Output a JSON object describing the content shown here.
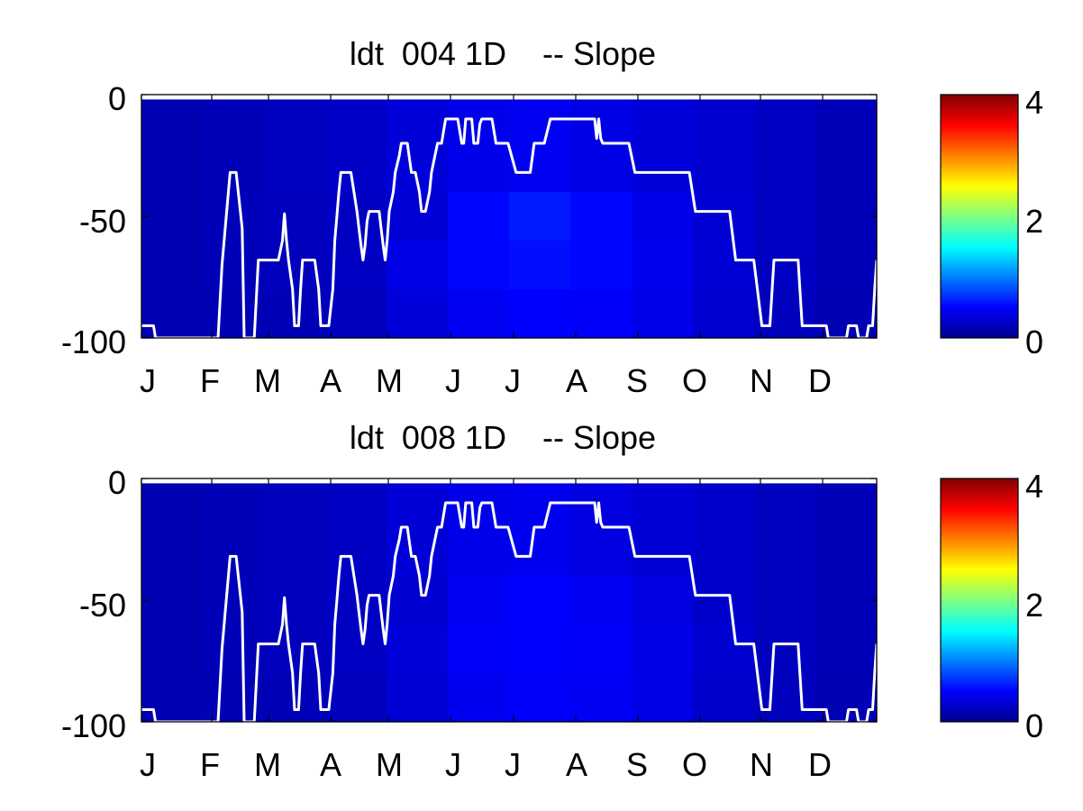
{
  "panels": [
    {
      "title": "ldt  004 1D    -- Slope",
      "yticks": [
        "0",
        "-50",
        "-100"
      ],
      "colorbar_ticks": [
        "4",
        "2",
        "0"
      ]
    },
    {
      "title": "ldt  008 1D    -- Slope",
      "yticks": [
        "0",
        "-50",
        "-100"
      ],
      "colorbar_ticks": [
        "4",
        "2",
        "0"
      ]
    }
  ],
  "month_labels": [
    "J",
    "F",
    "M",
    "A",
    "M",
    "J",
    "J",
    "A",
    "S",
    "O",
    "N",
    "D"
  ],
  "colors": {
    "background": "#ffffff",
    "line": "#ffffff",
    "colormap": "jet"
  },
  "chart_data": [
    {
      "type": "heatmap",
      "title": "ldt  004 1D    -- Slope",
      "xlabel": "",
      "ylabel": "",
      "xlim": [
        0,
        365
      ],
      "ylim": [
        -100,
        0
      ],
      "x_tick_labels": [
        "J",
        "F",
        "M",
        "A",
        "M",
        "J",
        "J",
        "A",
        "S",
        "O",
        "N",
        "D"
      ],
      "y_ticks": [
        0,
        -50,
        -100
      ],
      "colorbar": {
        "range": [
          0,
          4
        ],
        "ticks": [
          0,
          2,
          4
        ],
        "colormap": "jet",
        "position": "right"
      },
      "depth_bands": [
        {
          "range": [
            -2,
            -40
          ],
          "values": [
            0.2,
            0.22,
            0.25,
            0.28,
            0.35,
            0.42,
            0.45,
            0.4,
            0.36,
            0.32,
            0.26,
            0.22
          ]
        },
        {
          "range": [
            -40,
            -60
          ],
          "values": [
            0.2,
            0.22,
            0.24,
            0.26,
            0.34,
            0.52,
            0.6,
            0.52,
            0.42,
            0.33,
            0.26,
            0.22
          ]
        },
        {
          "range": [
            -60,
            -80
          ],
          "values": [
            0.2,
            0.22,
            0.24,
            0.26,
            0.4,
            0.52,
            0.55,
            0.52,
            0.44,
            0.34,
            0.26,
            0.22
          ]
        },
        {
          "range": [
            -80,
            -100
          ],
          "values": [
            0.2,
            0.21,
            0.22,
            0.24,
            0.36,
            0.45,
            0.5,
            0.48,
            0.42,
            0.32,
            0.24,
            0.21
          ]
        }
      ],
      "line": {
        "name": "",
        "color": "#ffffff",
        "points": [
          [
            0,
            -95
          ],
          [
            6,
            -95
          ],
          [
            7,
            -100
          ],
          [
            38,
            -100
          ],
          [
            40,
            -70
          ],
          [
            44,
            -32
          ],
          [
            47,
            -32
          ],
          [
            50,
            -55
          ],
          [
            51,
            -100
          ],
          [
            56,
            -100
          ],
          [
            58,
            -68
          ],
          [
            68,
            -68
          ],
          [
            70,
            -60
          ],
          [
            71,
            -49
          ],
          [
            72,
            -60
          ],
          [
            73,
            -68
          ],
          [
            75,
            -80
          ],
          [
            76,
            -95
          ],
          [
            78,
            -95
          ],
          [
            79,
            -80
          ],
          [
            80,
            -68
          ],
          [
            86,
            -68
          ],
          [
            88,
            -80
          ],
          [
            89,
            -95
          ],
          [
            93,
            -95
          ],
          [
            95,
            -80
          ],
          [
            96,
            -60
          ],
          [
            97,
            -50
          ],
          [
            98,
            -40
          ],
          [
            99,
            -32
          ],
          [
            104,
            -32
          ],
          [
            107,
            -48
          ],
          [
            108,
            -55
          ],
          [
            109,
            -62
          ],
          [
            110,
            -68
          ],
          [
            111,
            -62
          ],
          [
            112,
            -52
          ],
          [
            113,
            -48
          ],
          [
            118,
            -48
          ],
          [
            119,
            -55
          ],
          [
            120,
            -62
          ],
          [
            121,
            -68
          ],
          [
            122,
            -60
          ],
          [
            123,
            -48
          ],
          [
            125,
            -40
          ],
          [
            126,
            -32
          ],
          [
            128,
            -25
          ],
          [
            129,
            -20
          ],
          [
            132,
            -20
          ],
          [
            134,
            -32
          ],
          [
            136,
            -32
          ],
          [
            138,
            -40
          ],
          [
            139,
            -48
          ],
          [
            141,
            -48
          ],
          [
            143,
            -40
          ],
          [
            144,
            -32
          ],
          [
            147,
            -20
          ],
          [
            149,
            -20
          ],
          [
            151,
            -10
          ],
          [
            157,
            -10
          ],
          [
            159,
            -20
          ],
          [
            160,
            -20
          ],
          [
            161,
            -10
          ],
          [
            164,
            -10
          ],
          [
            165,
            -20
          ],
          [
            167,
            -20
          ],
          [
            168,
            -12
          ],
          [
            169,
            -10
          ],
          [
            174,
            -10
          ],
          [
            176,
            -20
          ],
          [
            182,
            -20
          ],
          [
            186,
            -32
          ],
          [
            193,
            -32
          ],
          [
            195,
            -20
          ],
          [
            200,
            -20
          ],
          [
            203,
            -10
          ],
          [
            225,
            -10
          ],
          [
            226,
            -18
          ],
          [
            227,
            -10
          ],
          [
            228,
            -18
          ],
          [
            229,
            -20
          ],
          [
            242,
            -20
          ],
          [
            245,
            -32
          ],
          [
            272,
            -32
          ],
          [
            275,
            -48
          ],
          [
            292,
            -48
          ],
          [
            295,
            -68
          ],
          [
            304,
            -68
          ],
          [
            308,
            -95
          ],
          [
            312,
            -95
          ],
          [
            314,
            -68
          ],
          [
            326,
            -68
          ],
          [
            328,
            -95
          ],
          [
            340,
            -95
          ],
          [
            341,
            -100
          ],
          [
            350,
            -100
          ],
          [
            351,
            -95
          ],
          [
            355,
            -95
          ],
          [
            356,
            -100
          ],
          [
            360,
            -100
          ],
          [
            361,
            -95
          ],
          [
            363,
            -95
          ],
          [
            364,
            -80
          ],
          [
            365,
            -68
          ]
        ]
      }
    },
    {
      "type": "heatmap",
      "title": "ldt  008 1D    -- Slope",
      "xlabel": "",
      "ylabel": "",
      "xlim": [
        0,
        365
      ],
      "ylim": [
        -100,
        0
      ],
      "x_tick_labels": [
        "J",
        "F",
        "M",
        "A",
        "M",
        "J",
        "J",
        "A",
        "S",
        "O",
        "N",
        "D"
      ],
      "y_ticks": [
        0,
        -50,
        -100
      ],
      "colorbar": {
        "range": [
          0,
          4
        ],
        "ticks": [
          0,
          2,
          4
        ],
        "colormap": "jet",
        "position": "right"
      },
      "depth_bands": [
        {
          "range": [
            -2,
            -40
          ],
          "values": [
            0.2,
            0.22,
            0.24,
            0.26,
            0.34,
            0.42,
            0.44,
            0.38,
            0.34,
            0.3,
            0.25,
            0.22
          ]
        },
        {
          "range": [
            -40,
            -60
          ],
          "values": [
            0.2,
            0.22,
            0.24,
            0.26,
            0.32,
            0.46,
            0.5,
            0.46,
            0.38,
            0.3,
            0.25,
            0.22
          ]
        },
        {
          "range": [
            -60,
            -80
          ],
          "values": [
            0.2,
            0.22,
            0.24,
            0.26,
            0.36,
            0.48,
            0.5,
            0.48,
            0.4,
            0.32,
            0.25,
            0.22
          ]
        },
        {
          "range": [
            -80,
            -100
          ],
          "values": [
            0.2,
            0.21,
            0.22,
            0.24,
            0.34,
            0.44,
            0.48,
            0.46,
            0.4,
            0.3,
            0.24,
            0.21
          ]
        }
      ],
      "line": {
        "name": "",
        "color": "#ffffff",
        "points": [
          [
            0,
            -95
          ],
          [
            6,
            -95
          ],
          [
            7,
            -100
          ],
          [
            38,
            -100
          ],
          [
            40,
            -70
          ],
          [
            44,
            -32
          ],
          [
            47,
            -32
          ],
          [
            50,
            -55
          ],
          [
            51,
            -100
          ],
          [
            56,
            -100
          ],
          [
            58,
            -68
          ],
          [
            68,
            -68
          ],
          [
            70,
            -60
          ],
          [
            71,
            -49
          ],
          [
            72,
            -60
          ],
          [
            73,
            -68
          ],
          [
            75,
            -80
          ],
          [
            76,
            -95
          ],
          [
            78,
            -95
          ],
          [
            79,
            -80
          ],
          [
            80,
            -68
          ],
          [
            86,
            -68
          ],
          [
            88,
            -80
          ],
          [
            89,
            -95
          ],
          [
            93,
            -95
          ],
          [
            95,
            -80
          ],
          [
            96,
            -60
          ],
          [
            97,
            -50
          ],
          [
            98,
            -40
          ],
          [
            99,
            -32
          ],
          [
            104,
            -32
          ],
          [
            107,
            -48
          ],
          [
            108,
            -55
          ],
          [
            109,
            -62
          ],
          [
            110,
            -68
          ],
          [
            111,
            -62
          ],
          [
            112,
            -52
          ],
          [
            113,
            -48
          ],
          [
            118,
            -48
          ],
          [
            119,
            -55
          ],
          [
            120,
            -62
          ],
          [
            121,
            -68
          ],
          [
            122,
            -60
          ],
          [
            123,
            -48
          ],
          [
            125,
            -40
          ],
          [
            126,
            -32
          ],
          [
            128,
            -25
          ],
          [
            129,
            -20
          ],
          [
            132,
            -20
          ],
          [
            134,
            -32
          ],
          [
            136,
            -32
          ],
          [
            138,
            -40
          ],
          [
            139,
            -48
          ],
          [
            141,
            -48
          ],
          [
            143,
            -40
          ],
          [
            144,
            -32
          ],
          [
            147,
            -20
          ],
          [
            149,
            -20
          ],
          [
            151,
            -10
          ],
          [
            157,
            -10
          ],
          [
            159,
            -20
          ],
          [
            160,
            -20
          ],
          [
            161,
            -10
          ],
          [
            164,
            -10
          ],
          [
            165,
            -20
          ],
          [
            167,
            -20
          ],
          [
            168,
            -12
          ],
          [
            169,
            -10
          ],
          [
            174,
            -10
          ],
          [
            176,
            -20
          ],
          [
            182,
            -20
          ],
          [
            186,
            -32
          ],
          [
            193,
            -32
          ],
          [
            195,
            -20
          ],
          [
            200,
            -20
          ],
          [
            203,
            -10
          ],
          [
            225,
            -10
          ],
          [
            226,
            -18
          ],
          [
            227,
            -10
          ],
          [
            228,
            -18
          ],
          [
            229,
            -20
          ],
          [
            242,
            -20
          ],
          [
            245,
            -32
          ],
          [
            272,
            -32
          ],
          [
            275,
            -48
          ],
          [
            292,
            -48
          ],
          [
            295,
            -68
          ],
          [
            304,
            -68
          ],
          [
            308,
            -95
          ],
          [
            312,
            -95
          ],
          [
            314,
            -68
          ],
          [
            326,
            -68
          ],
          [
            328,
            -95
          ],
          [
            340,
            -95
          ],
          [
            341,
            -100
          ],
          [
            350,
            -100
          ],
          [
            351,
            -95
          ],
          [
            355,
            -95
          ],
          [
            356,
            -100
          ],
          [
            360,
            -100
          ],
          [
            361,
            -95
          ],
          [
            363,
            -95
          ],
          [
            364,
            -80
          ],
          [
            365,
            -68
          ]
        ]
      }
    }
  ]
}
